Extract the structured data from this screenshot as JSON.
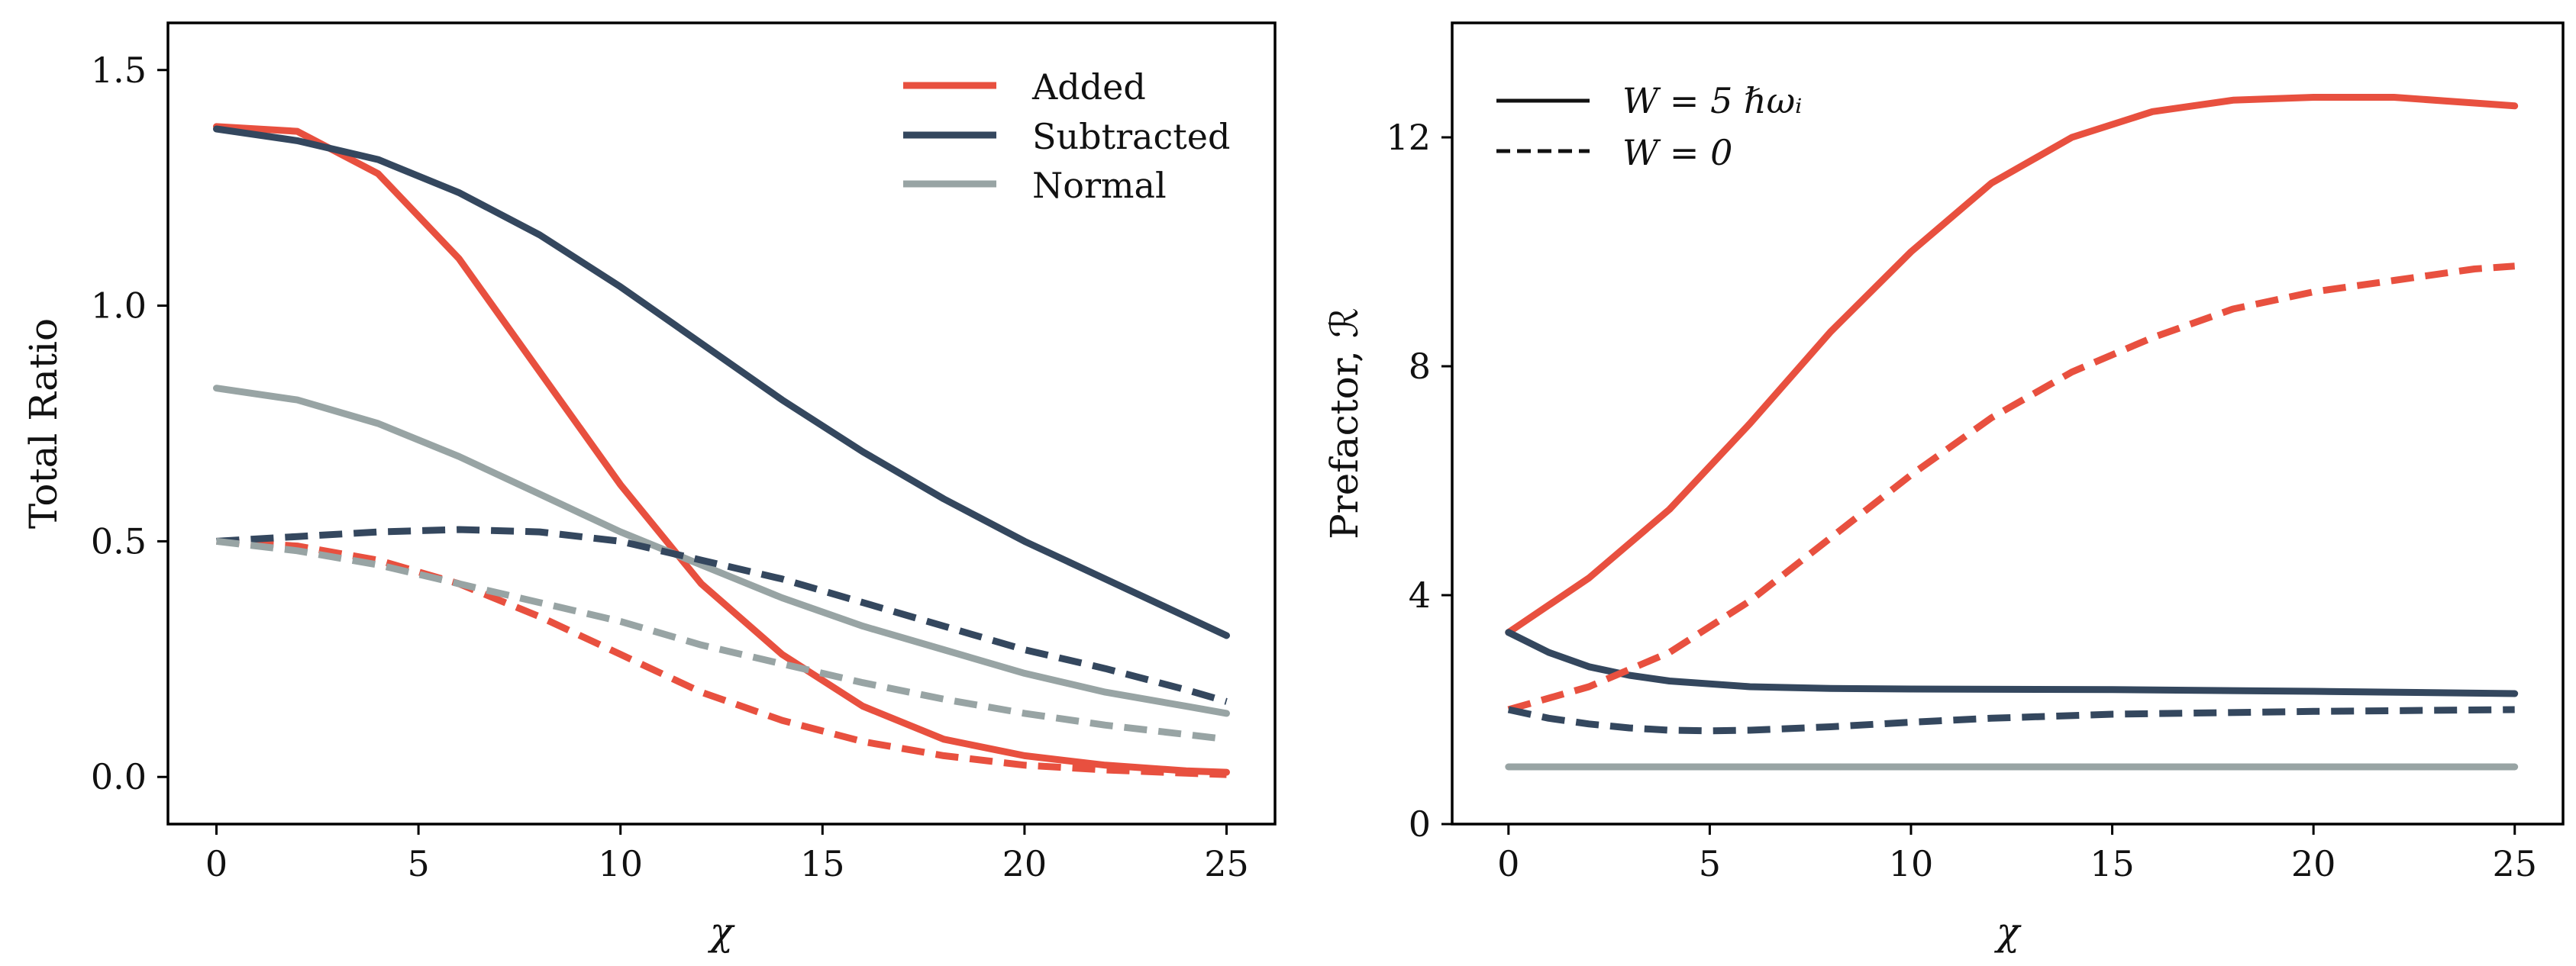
{
  "figure": {
    "colors": {
      "added": "#e8503f",
      "subtracted": "#34475e",
      "normal": "#98a4a4"
    }
  },
  "chart_data": [
    {
      "type": "line",
      "xlabel": "χ",
      "ylabel": "Total Ratio",
      "xlim": [
        -1.2,
        26.2
      ],
      "ylim": [
        -0.1,
        1.6
      ],
      "xticks": [
        0,
        5,
        10,
        15,
        20,
        25
      ],
      "xtick_labels": [
        "0",
        "5",
        "10",
        "15",
        "20",
        "25"
      ],
      "yticks": [
        0.0,
        0.5,
        1.0,
        1.5
      ],
      "ytick_labels": [
        "0.0",
        "0.5",
        "1.0",
        "1.5"
      ],
      "grid": false,
      "legend": {
        "placement": "top-right",
        "entries": [
          "Added",
          "Subtracted",
          "Normal"
        ]
      },
      "series": [
        {
          "name": "Added",
          "color": "#e8503f",
          "style": "solid",
          "x": [
            0,
            2,
            4,
            6,
            8,
            10,
            12,
            14,
            16,
            18,
            20,
            22,
            24,
            25
          ],
          "y": [
            1.38,
            1.37,
            1.28,
            1.1,
            0.86,
            0.62,
            0.41,
            0.26,
            0.15,
            0.08,
            0.045,
            0.025,
            0.013,
            0.01
          ]
        },
        {
          "name": "Subtracted",
          "color": "#34475e",
          "style": "solid",
          "x": [
            0,
            2,
            4,
            6,
            8,
            10,
            12,
            14,
            16,
            18,
            20,
            22,
            24,
            25
          ],
          "y": [
            1.375,
            1.35,
            1.31,
            1.24,
            1.15,
            1.04,
            0.92,
            0.8,
            0.69,
            0.59,
            0.5,
            0.42,
            0.34,
            0.3
          ]
        },
        {
          "name": "Normal",
          "color": "#98a4a4",
          "style": "solid",
          "x": [
            0,
            2,
            4,
            6,
            8,
            10,
            12,
            14,
            16,
            18,
            20,
            22,
            24,
            25
          ],
          "y": [
            0.825,
            0.8,
            0.75,
            0.68,
            0.6,
            0.52,
            0.45,
            0.38,
            0.32,
            0.27,
            0.22,
            0.18,
            0.15,
            0.135
          ]
        },
        {
          "series_of": "Added",
          "color": "#e8503f",
          "style": "dashed",
          "x": [
            0,
            2,
            4,
            6,
            8,
            10,
            12,
            14,
            16,
            18,
            20,
            22,
            24,
            25
          ],
          "y": [
            0.5,
            0.49,
            0.46,
            0.41,
            0.34,
            0.26,
            0.18,
            0.12,
            0.075,
            0.045,
            0.025,
            0.015,
            0.008,
            0.005
          ]
        },
        {
          "series_of": "Subtracted",
          "color": "#34475e",
          "style": "dashed",
          "x": [
            0,
            2,
            4,
            6,
            8,
            10,
            12,
            14,
            16,
            18,
            20,
            22,
            24,
            25
          ],
          "y": [
            0.5,
            0.51,
            0.52,
            0.525,
            0.52,
            0.5,
            0.46,
            0.42,
            0.37,
            0.32,
            0.27,
            0.23,
            0.185,
            0.16
          ]
        },
        {
          "series_of": "Normal",
          "color": "#98a4a4",
          "style": "dashed",
          "x": [
            0,
            2,
            4,
            6,
            8,
            10,
            12,
            14,
            16,
            18,
            20,
            22,
            24,
            25
          ],
          "y": [
            0.5,
            0.48,
            0.45,
            0.41,
            0.37,
            0.33,
            0.28,
            0.24,
            0.2,
            0.165,
            0.135,
            0.11,
            0.09,
            0.08
          ]
        }
      ]
    },
    {
      "type": "line",
      "xlabel": "χ",
      "ylabel": "Prefactor, ℛ",
      "xlim": [
        -1.4,
        26.2
      ],
      "ylim": [
        0,
        14
      ],
      "xticks": [
        0,
        5,
        10,
        15,
        20,
        25
      ],
      "xtick_labels": [
        "0",
        "5",
        "10",
        "15",
        "20",
        "25"
      ],
      "yticks": [
        0,
        4,
        8,
        12
      ],
      "ytick_labels": [
        "0",
        "4",
        "8",
        "12"
      ],
      "grid": false,
      "legend": {
        "placement": "top-left",
        "entries": [
          "W = 5 ℏωᵢ",
          "W = 0"
        ]
      },
      "series": [
        {
          "series_of": "Added",
          "color": "#e8503f",
          "style": "solid",
          "legend_entry": "W = 5 ℏωᵢ",
          "x": [
            0,
            2,
            4,
            6,
            8,
            10,
            12,
            14,
            16,
            18,
            20,
            22,
            24,
            25
          ],
          "y": [
            3.35,
            4.3,
            5.5,
            7.0,
            8.6,
            10.0,
            11.2,
            12.0,
            12.45,
            12.65,
            12.7,
            12.7,
            12.6,
            12.55
          ]
        },
        {
          "series_of": "Subtracted",
          "color": "#34475e",
          "style": "solid",
          "legend_entry": "W = 5 ℏωᵢ",
          "x": [
            0,
            1,
            2,
            3,
            4,
            6,
            8,
            10,
            15,
            20,
            25
          ],
          "y": [
            3.35,
            3.0,
            2.75,
            2.6,
            2.5,
            2.4,
            2.37,
            2.36,
            2.35,
            2.32,
            2.28
          ]
        },
        {
          "series_of": "Normal",
          "color": "#98a4a4",
          "style": "solid",
          "legend_entry": "W = 5 ℏωᵢ",
          "x": [
            0,
            25
          ],
          "y": [
            1.0,
            1.0
          ]
        },
        {
          "series_of": "Added",
          "color": "#e8503f",
          "style": "dashed",
          "legend_entry": "W = 0",
          "x": [
            0,
            2,
            4,
            6,
            8,
            10,
            12,
            14,
            16,
            18,
            20,
            22,
            24,
            25
          ],
          "y": [
            2.0,
            2.4,
            3.0,
            3.9,
            5.0,
            6.1,
            7.1,
            7.9,
            8.5,
            9.0,
            9.3,
            9.5,
            9.7,
            9.75
          ]
        },
        {
          "series_of": "Subtracted",
          "color": "#34475e",
          "style": "dashed",
          "legend_entry": "W = 0",
          "x": [
            0,
            1,
            2,
            3,
            4,
            5,
            6,
            8,
            10,
            12,
            15,
            20,
            25
          ],
          "y": [
            2.0,
            1.85,
            1.75,
            1.68,
            1.64,
            1.63,
            1.64,
            1.7,
            1.78,
            1.85,
            1.92,
            1.97,
            2.0
          ]
        },
        {
          "series_of": "Normal",
          "color": "#98a4a4",
          "style": "dashed",
          "legend_entry": "W = 0",
          "x": [
            0,
            25
          ],
          "y": [
            1.0,
            1.0
          ]
        }
      ]
    }
  ]
}
